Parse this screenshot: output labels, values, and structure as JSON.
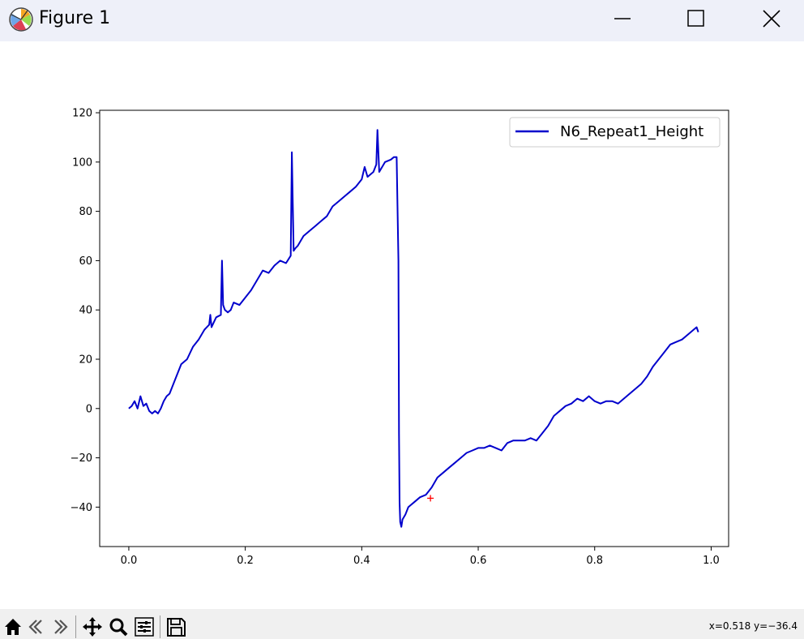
{
  "window": {
    "title": "Figure 1",
    "buttons": {
      "minimize": "minimize",
      "maximize": "maximize",
      "close": "close"
    }
  },
  "toolbar": {
    "items": [
      "home-icon",
      "back-icon",
      "forward-icon",
      "pan-icon",
      "zoom-icon",
      "configure-subplots-icon",
      "save-icon"
    ],
    "coords": "x=0.518 y=−36.4"
  },
  "colors": {
    "line": "#0000cc",
    "marker": "#ff0000",
    "titlebar": "#eef0f9",
    "toolbar": "#f0f0f0"
  },
  "chart_data": {
    "type": "line",
    "title": "",
    "xlabel": "",
    "ylabel": "",
    "xlim": [
      -0.05,
      1.03
    ],
    "ylim": [
      -56,
      121
    ],
    "xticks": [
      0.0,
      0.2,
      0.4,
      0.6,
      0.8,
      1.0
    ],
    "xtick_labels": [
      "0.0",
      "0.2",
      "0.4",
      "0.6",
      "0.8",
      "1.0"
    ],
    "yticks": [
      -40,
      -20,
      0,
      20,
      40,
      60,
      80,
      100,
      120
    ],
    "ytick_labels": [
      "−40",
      "−20",
      "0",
      "20",
      "40",
      "60",
      "80",
      "100",
      "120"
    ],
    "grid": false,
    "legend_position": "top-right",
    "series": [
      {
        "name": "N6_Repeat1_Height",
        "x": [
          0.0,
          0.005,
          0.01,
          0.015,
          0.02,
          0.025,
          0.03,
          0.035,
          0.04,
          0.045,
          0.05,
          0.055,
          0.06,
          0.065,
          0.07,
          0.075,
          0.08,
          0.09,
          0.1,
          0.11,
          0.12,
          0.13,
          0.138,
          0.14,
          0.142,
          0.146,
          0.15,
          0.158,
          0.16,
          0.162,
          0.165,
          0.17,
          0.175,
          0.18,
          0.19,
          0.2,
          0.21,
          0.22,
          0.23,
          0.24,
          0.25,
          0.26,
          0.27,
          0.278,
          0.28,
          0.283,
          0.286,
          0.29,
          0.3,
          0.31,
          0.32,
          0.33,
          0.34,
          0.35,
          0.36,
          0.37,
          0.38,
          0.39,
          0.4,
          0.405,
          0.41,
          0.42,
          0.425,
          0.427,
          0.43,
          0.435,
          0.44,
          0.45,
          0.455,
          0.46,
          0.463,
          0.464,
          0.465,
          0.466,
          0.468,
          0.47,
          0.475,
          0.48,
          0.49,
          0.5,
          0.51,
          0.52,
          0.53,
          0.54,
          0.55,
          0.56,
          0.57,
          0.58,
          0.59,
          0.6,
          0.61,
          0.62,
          0.63,
          0.64,
          0.65,
          0.66,
          0.67,
          0.68,
          0.69,
          0.7,
          0.71,
          0.72,
          0.73,
          0.74,
          0.75,
          0.76,
          0.77,
          0.78,
          0.79,
          0.8,
          0.81,
          0.82,
          0.83,
          0.84,
          0.85,
          0.86,
          0.87,
          0.88,
          0.89,
          0.9,
          0.91,
          0.92,
          0.93,
          0.94,
          0.95,
          0.96,
          0.97,
          0.975,
          0.978
        ],
        "y": [
          0,
          1,
          3,
          0,
          5,
          1,
          2,
          -1,
          -2,
          -1,
          -2,
          0,
          3,
          5,
          6,
          9,
          12,
          18,
          20,
          25,
          28,
          32,
          34,
          38,
          33,
          35,
          37,
          38,
          60,
          42,
          40,
          39,
          40,
          43,
          42,
          45,
          48,
          52,
          56,
          55,
          58,
          60,
          59,
          62,
          104,
          64,
          65,
          66,
          70,
          72,
          74,
          76,
          78,
          82,
          84,
          86,
          88,
          90,
          93,
          98,
          94,
          96,
          99,
          113,
          96,
          98,
          100,
          101,
          102,
          102,
          60,
          -10,
          -38,
          -46,
          -48,
          -45,
          -43,
          -40,
          -38,
          -36,
          -35,
          -32,
          -28,
          -26,
          -24,
          -22,
          -20,
          -18,
          -17,
          -16,
          -16,
          -15,
          -16,
          -17,
          -14,
          -13,
          -13,
          -13,
          -12,
          -13,
          -10,
          -7,
          -3,
          -1,
          1,
          2,
          4,
          3,
          5,
          3,
          2,
          3,
          3,
          2,
          4,
          6,
          8,
          10,
          13,
          17,
          20,
          23,
          26,
          27,
          28,
          30,
          32,
          33,
          31
        ]
      }
    ],
    "marker": {
      "x": 0.518,
      "y": -36.4,
      "symbol": "+"
    }
  }
}
